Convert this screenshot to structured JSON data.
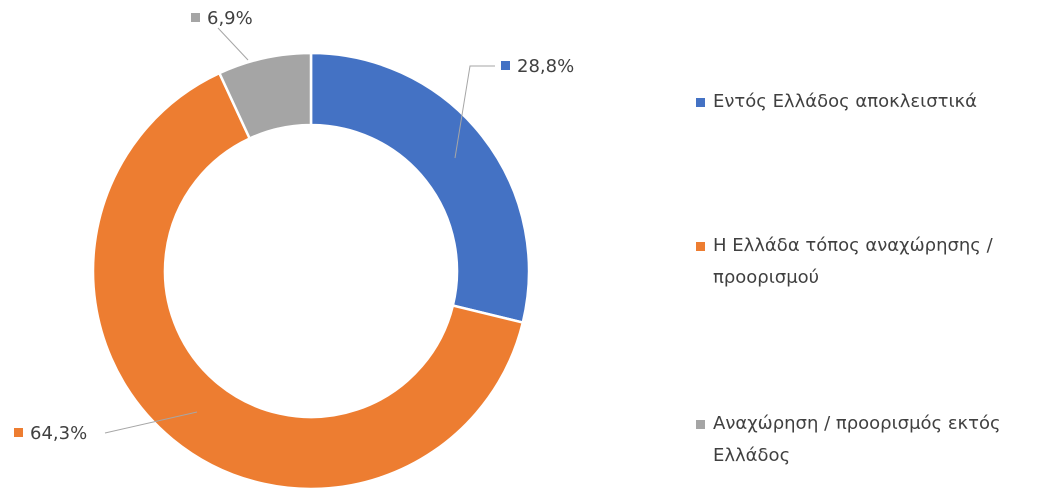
{
  "chart_data": {
    "type": "donut",
    "categories": [
      "Εντός Ελλάδος αποκλειστικά",
      "Η Ελλάδα τόπος αναχώρησης / προορισμού",
      "Αναχώρηση / προορισμός εκτός Ελλάδος"
    ],
    "values": [
      28.8,
      64.3,
      6.9
    ],
    "value_labels": [
      "28,8%",
      "64,3%",
      "6,9%"
    ],
    "colors": [
      "#4472c4",
      "#ed7d31",
      "#a5a5a5"
    ],
    "legend": "right"
  }
}
